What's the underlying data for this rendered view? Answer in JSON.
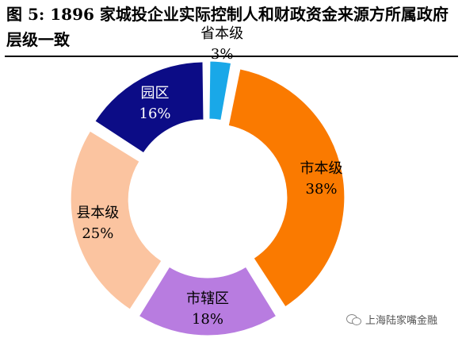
{
  "figure": {
    "label": "图 5:",
    "title_text": "1896 家城投企业实际控制人和财政资金来源方所属政府层级一致"
  },
  "chart_data": {
    "type": "pie",
    "donut": true,
    "categories": [
      "省本级",
      "市本级",
      "市辖区",
      "县本级",
      "园区"
    ],
    "values": [
      3,
      38,
      18,
      25,
      16
    ],
    "unit": "%",
    "colors": [
      "#19a8e8",
      "#fa7a00",
      "#b87ce0",
      "#fbc4a0",
      "#0c0c86"
    ],
    "label_colors": [
      "#000000",
      "#000000",
      "#000000",
      "#000000",
      "#ffffff"
    ]
  },
  "watermark": {
    "text": "上海陆家嘴金融"
  }
}
